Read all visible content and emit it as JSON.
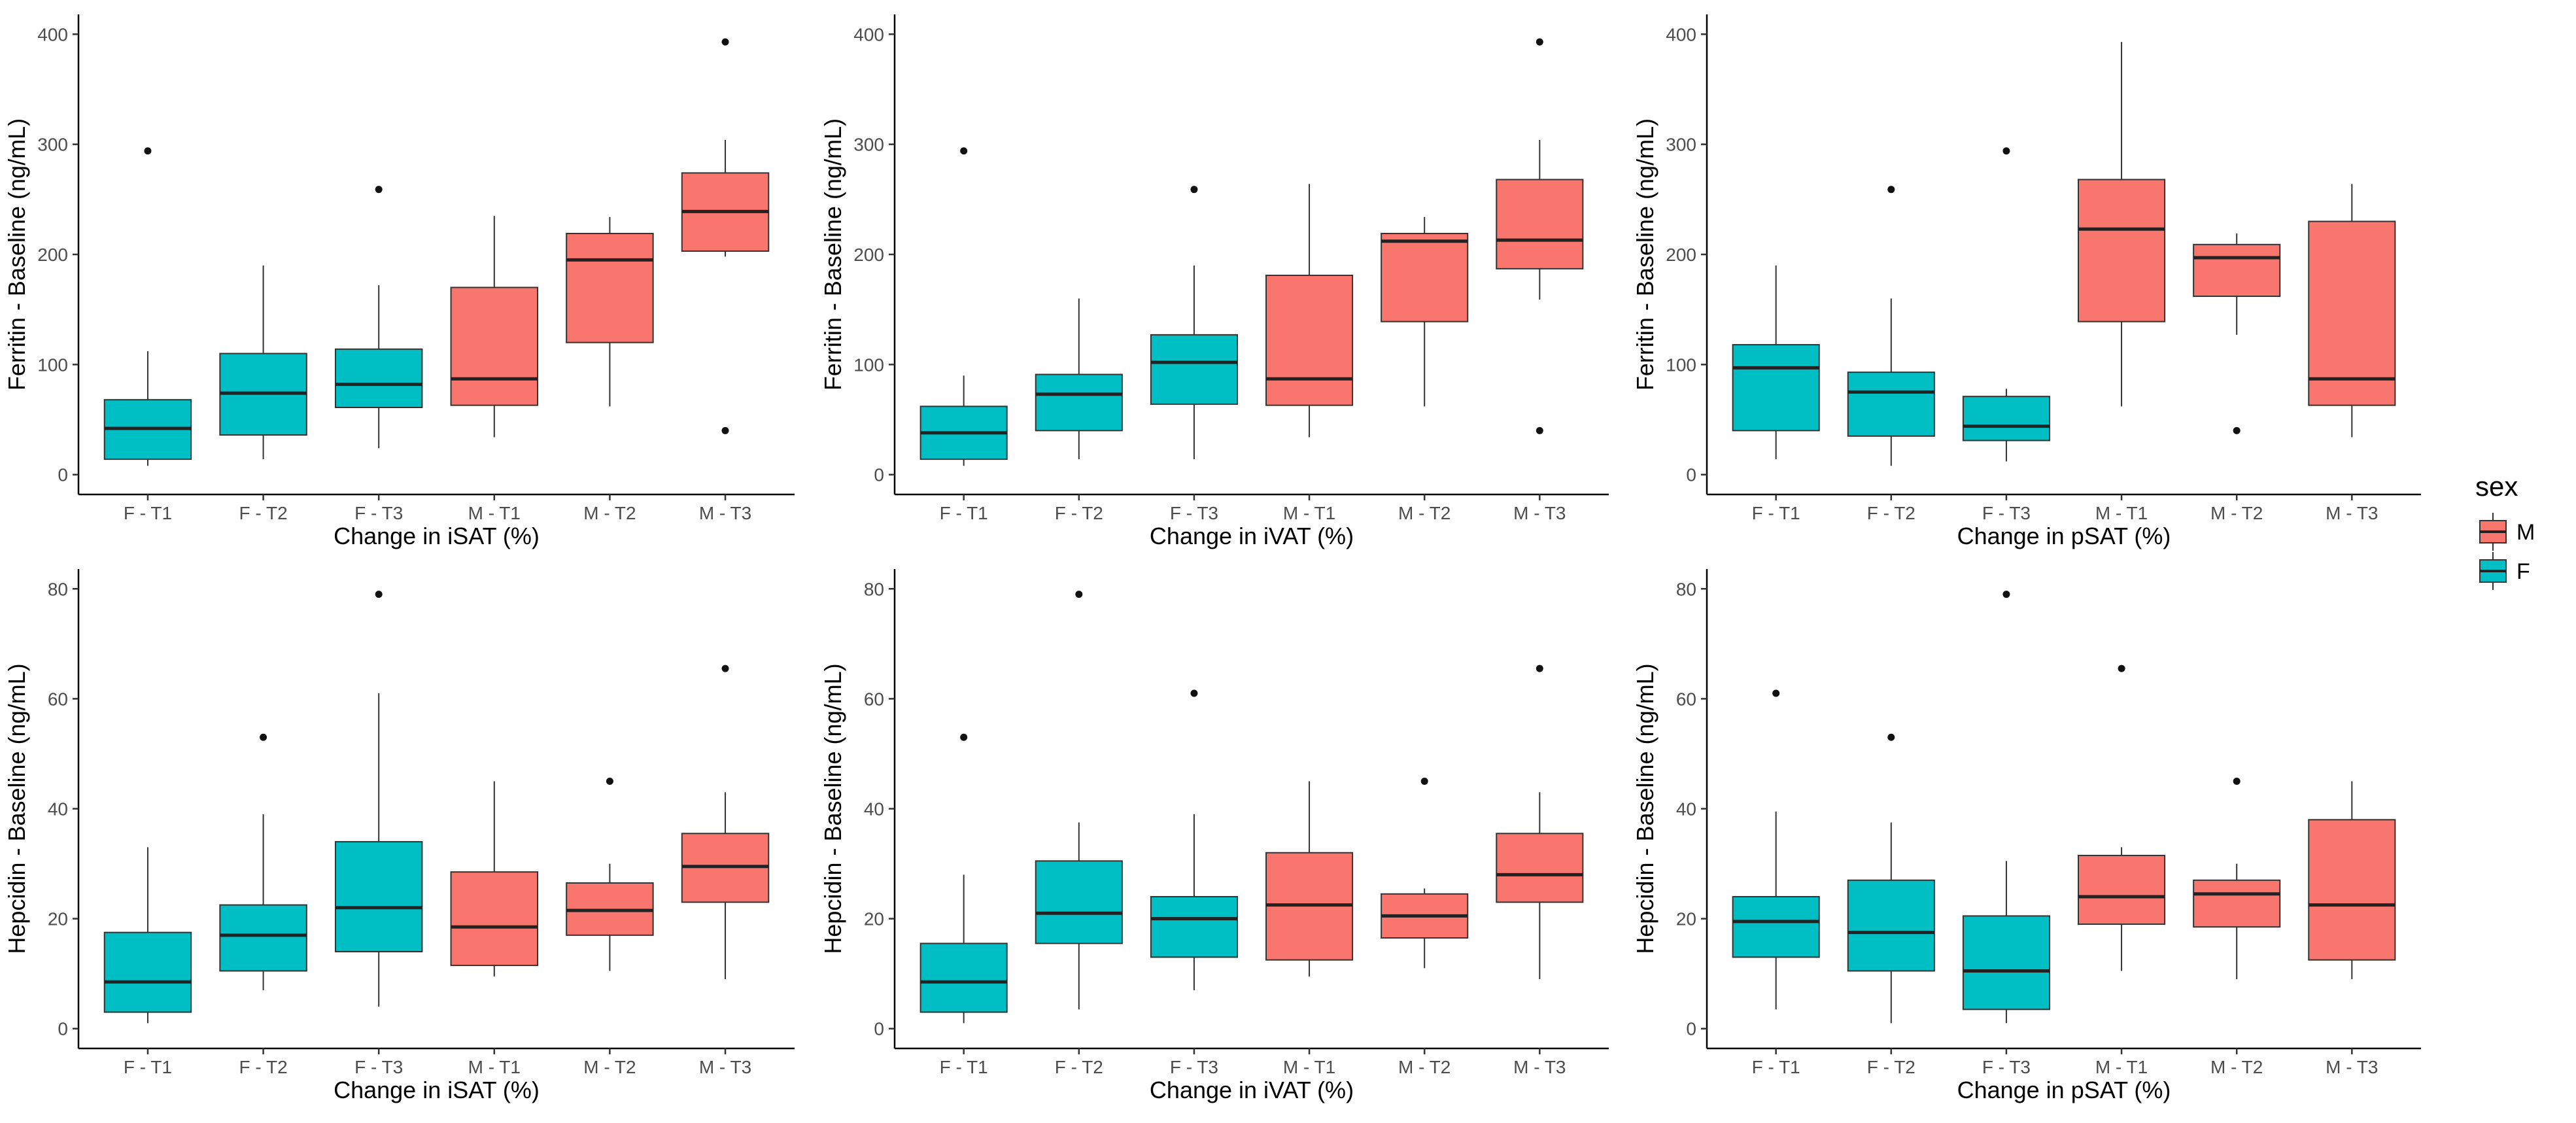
{
  "chart_data": [
    {
      "type": "box",
      "xlabel": "Change in iSAT (%)",
      "ylabel": "Ferritin - Baseline (ng/mL)",
      "ylim": [
        0,
        400
      ],
      "yticks": [
        0,
        100,
        200,
        300,
        400
      ],
      "categories": [
        "F - T1",
        "F - T2",
        "F - T3",
        "M - T1",
        "M - T2",
        "M - T3"
      ],
      "groups": [
        "F",
        "F",
        "F",
        "M",
        "M",
        "M"
      ],
      "boxes": [
        {
          "min": 8,
          "q1": 14,
          "median": 42,
          "q3": 68,
          "max": 112,
          "outliers": [
            294
          ]
        },
        {
          "min": 14,
          "q1": 36,
          "median": 74,
          "q3": 110,
          "max": 190,
          "outliers": []
        },
        {
          "min": 24,
          "q1": 61,
          "median": 82,
          "q3": 114,
          "max": 172,
          "outliers": [
            259
          ]
        },
        {
          "min": 34,
          "q1": 63,
          "median": 87,
          "q3": 170,
          "max": 235,
          "outliers": []
        },
        {
          "min": 62,
          "q1": 120,
          "median": 195,
          "q3": 219,
          "max": 234,
          "outliers": []
        },
        {
          "min": 198,
          "q1": 203,
          "median": 239,
          "q3": 274,
          "max": 304,
          "outliers": [
            393,
            40
          ]
        }
      ]
    },
    {
      "type": "box",
      "xlabel": "Change in iVAT (%)",
      "ylabel": "Ferritin - Baseline (ng/mL)",
      "ylim": [
        0,
        400
      ],
      "yticks": [
        0,
        100,
        200,
        300,
        400
      ],
      "categories": [
        "F - T1",
        "F - T2",
        "F - T3",
        "M - T1",
        "M - T2",
        "M - T3"
      ],
      "groups": [
        "F",
        "F",
        "F",
        "M",
        "M",
        "M"
      ],
      "boxes": [
        {
          "min": 8,
          "q1": 14,
          "median": 38,
          "q3": 62,
          "max": 90,
          "outliers": [
            294
          ]
        },
        {
          "min": 14,
          "q1": 40,
          "median": 73,
          "q3": 91,
          "max": 160,
          "outliers": []
        },
        {
          "min": 14,
          "q1": 64,
          "median": 102,
          "q3": 127,
          "max": 190,
          "outliers": [
            259
          ]
        },
        {
          "min": 34,
          "q1": 63,
          "median": 87,
          "q3": 181,
          "max": 264,
          "outliers": []
        },
        {
          "min": 62,
          "q1": 139,
          "median": 212,
          "q3": 219,
          "max": 234,
          "outliers": []
        },
        {
          "min": 159,
          "q1": 187,
          "median": 213,
          "q3": 268,
          "max": 304,
          "outliers": [
            393,
            40
          ]
        }
      ]
    },
    {
      "type": "box",
      "xlabel": "Change in pSAT (%)",
      "ylabel": "Ferritin - Baseline (ng/mL)",
      "ylim": [
        0,
        400
      ],
      "yticks": [
        0,
        100,
        200,
        300,
        400
      ],
      "categories": [
        "F - T1",
        "F - T2",
        "F - T3",
        "M - T1",
        "M - T2",
        "M - T3"
      ],
      "groups": [
        "F",
        "F",
        "F",
        "M",
        "M",
        "M"
      ],
      "boxes": [
        {
          "min": 14,
          "q1": 40,
          "median": 97,
          "q3": 118,
          "max": 190,
          "outliers": []
        },
        {
          "min": 8,
          "q1": 35,
          "median": 75,
          "q3": 93,
          "max": 160,
          "outliers": [
            259
          ]
        },
        {
          "min": 12,
          "q1": 31,
          "median": 44,
          "q3": 71,
          "max": 78,
          "outliers": [
            294
          ]
        },
        {
          "min": 62,
          "q1": 139,
          "median": 223,
          "q3": 268,
          "max": 393,
          "outliers": []
        },
        {
          "min": 127,
          "q1": 162,
          "median": 197,
          "q3": 209,
          "max": 219,
          "outliers": [
            40
          ]
        },
        {
          "min": 34,
          "q1": 63,
          "median": 87,
          "q3": 230,
          "max": 264,
          "outliers": []
        }
      ]
    },
    {
      "type": "box",
      "xlabel": "Change in iSAT (%)",
      "ylabel": "Hepcidin - Baseline (ng/mL)",
      "ylim": [
        0,
        80
      ],
      "yticks": [
        0,
        20,
        40,
        60,
        80
      ],
      "categories": [
        "F - T1",
        "F - T2",
        "F - T3",
        "M - T1",
        "M - T2",
        "M - T3"
      ],
      "groups": [
        "F",
        "F",
        "F",
        "M",
        "M",
        "M"
      ],
      "boxes": [
        {
          "min": 1,
          "q1": 3,
          "median": 8.5,
          "q3": 17.5,
          "max": 33,
          "outliers": []
        },
        {
          "min": 7,
          "q1": 10.5,
          "median": 17,
          "q3": 22.5,
          "max": 39,
          "outliers": [
            53
          ]
        },
        {
          "min": 4,
          "q1": 14,
          "median": 22,
          "q3": 34,
          "max": 61,
          "outliers": [
            79
          ]
        },
        {
          "min": 9.5,
          "q1": 11.5,
          "median": 18.5,
          "q3": 28.5,
          "max": 45,
          "outliers": []
        },
        {
          "min": 10.5,
          "q1": 17,
          "median": 21.5,
          "q3": 26.5,
          "max": 30,
          "outliers": [
            45
          ]
        },
        {
          "min": 9,
          "q1": 23,
          "median": 29.5,
          "q3": 35.5,
          "max": 43,
          "outliers": [
            65.5
          ]
        }
      ]
    },
    {
      "type": "box",
      "xlabel": "Change in iVAT (%)",
      "ylabel": "Hepcidin - Baseline (ng/mL)",
      "ylim": [
        0,
        80
      ],
      "yticks": [
        0,
        20,
        40,
        60,
        80
      ],
      "categories": [
        "F - T1",
        "F - T2",
        "F - T3",
        "M - T1",
        "M - T2",
        "M - T3"
      ],
      "groups": [
        "F",
        "F",
        "F",
        "M",
        "M",
        "M"
      ],
      "boxes": [
        {
          "min": 1,
          "q1": 3,
          "median": 8.5,
          "q3": 15.5,
          "max": 28,
          "outliers": [
            53
          ]
        },
        {
          "min": 3.5,
          "q1": 15.5,
          "median": 21,
          "q3": 30.5,
          "max": 37.5,
          "outliers": [
            79
          ]
        },
        {
          "min": 7,
          "q1": 13,
          "median": 20,
          "q3": 24,
          "max": 39,
          "outliers": [
            61
          ]
        },
        {
          "min": 9.5,
          "q1": 12.5,
          "median": 22.5,
          "q3": 32,
          "max": 45,
          "outliers": []
        },
        {
          "min": 11,
          "q1": 16.5,
          "median": 20.5,
          "q3": 24.5,
          "max": 25.5,
          "outliers": [
            45
          ]
        },
        {
          "min": 9,
          "q1": 23,
          "median": 28,
          "q3": 35.5,
          "max": 43,
          "outliers": [
            65.5
          ]
        }
      ]
    },
    {
      "type": "box",
      "xlabel": "Change in pSAT (%)",
      "ylabel": "Hepcidin - Baseline (ng/mL)",
      "ylim": [
        0,
        80
      ],
      "yticks": [
        0,
        20,
        40,
        60,
        80
      ],
      "categories": [
        "F - T1",
        "F - T2",
        "F - T3",
        "M - T1",
        "M - T2",
        "M - T3"
      ],
      "groups": [
        "F",
        "F",
        "F",
        "M",
        "M",
        "M"
      ],
      "boxes": [
        {
          "min": 3.5,
          "q1": 13,
          "median": 19.5,
          "q3": 24,
          "max": 39.5,
          "outliers": [
            61
          ]
        },
        {
          "min": 1,
          "q1": 10.5,
          "median": 17.5,
          "q3": 27,
          "max": 37.5,
          "outliers": [
            53
          ]
        },
        {
          "min": 1,
          "q1": 3.5,
          "median": 10.5,
          "q3": 20.5,
          "max": 30.5,
          "outliers": [
            79
          ]
        },
        {
          "min": 10.5,
          "q1": 19,
          "median": 24,
          "q3": 31.5,
          "max": 33,
          "outliers": [
            65.5
          ]
        },
        {
          "min": 9,
          "q1": 18.5,
          "median": 24.5,
          "q3": 27,
          "max": 30,
          "outliers": [
            45
          ]
        },
        {
          "min": 9,
          "q1": 12.5,
          "median": 22.5,
          "q3": 38,
          "max": 45,
          "outliers": []
        }
      ]
    }
  ],
  "legend": {
    "title": "sex",
    "placement": "right",
    "items": [
      {
        "label": "M",
        "color": "#F8766D"
      },
      {
        "label": "F",
        "color": "#00BFC4"
      }
    ]
  },
  "colors": {
    "M": "#F8766D",
    "F": "#00BFC4"
  }
}
